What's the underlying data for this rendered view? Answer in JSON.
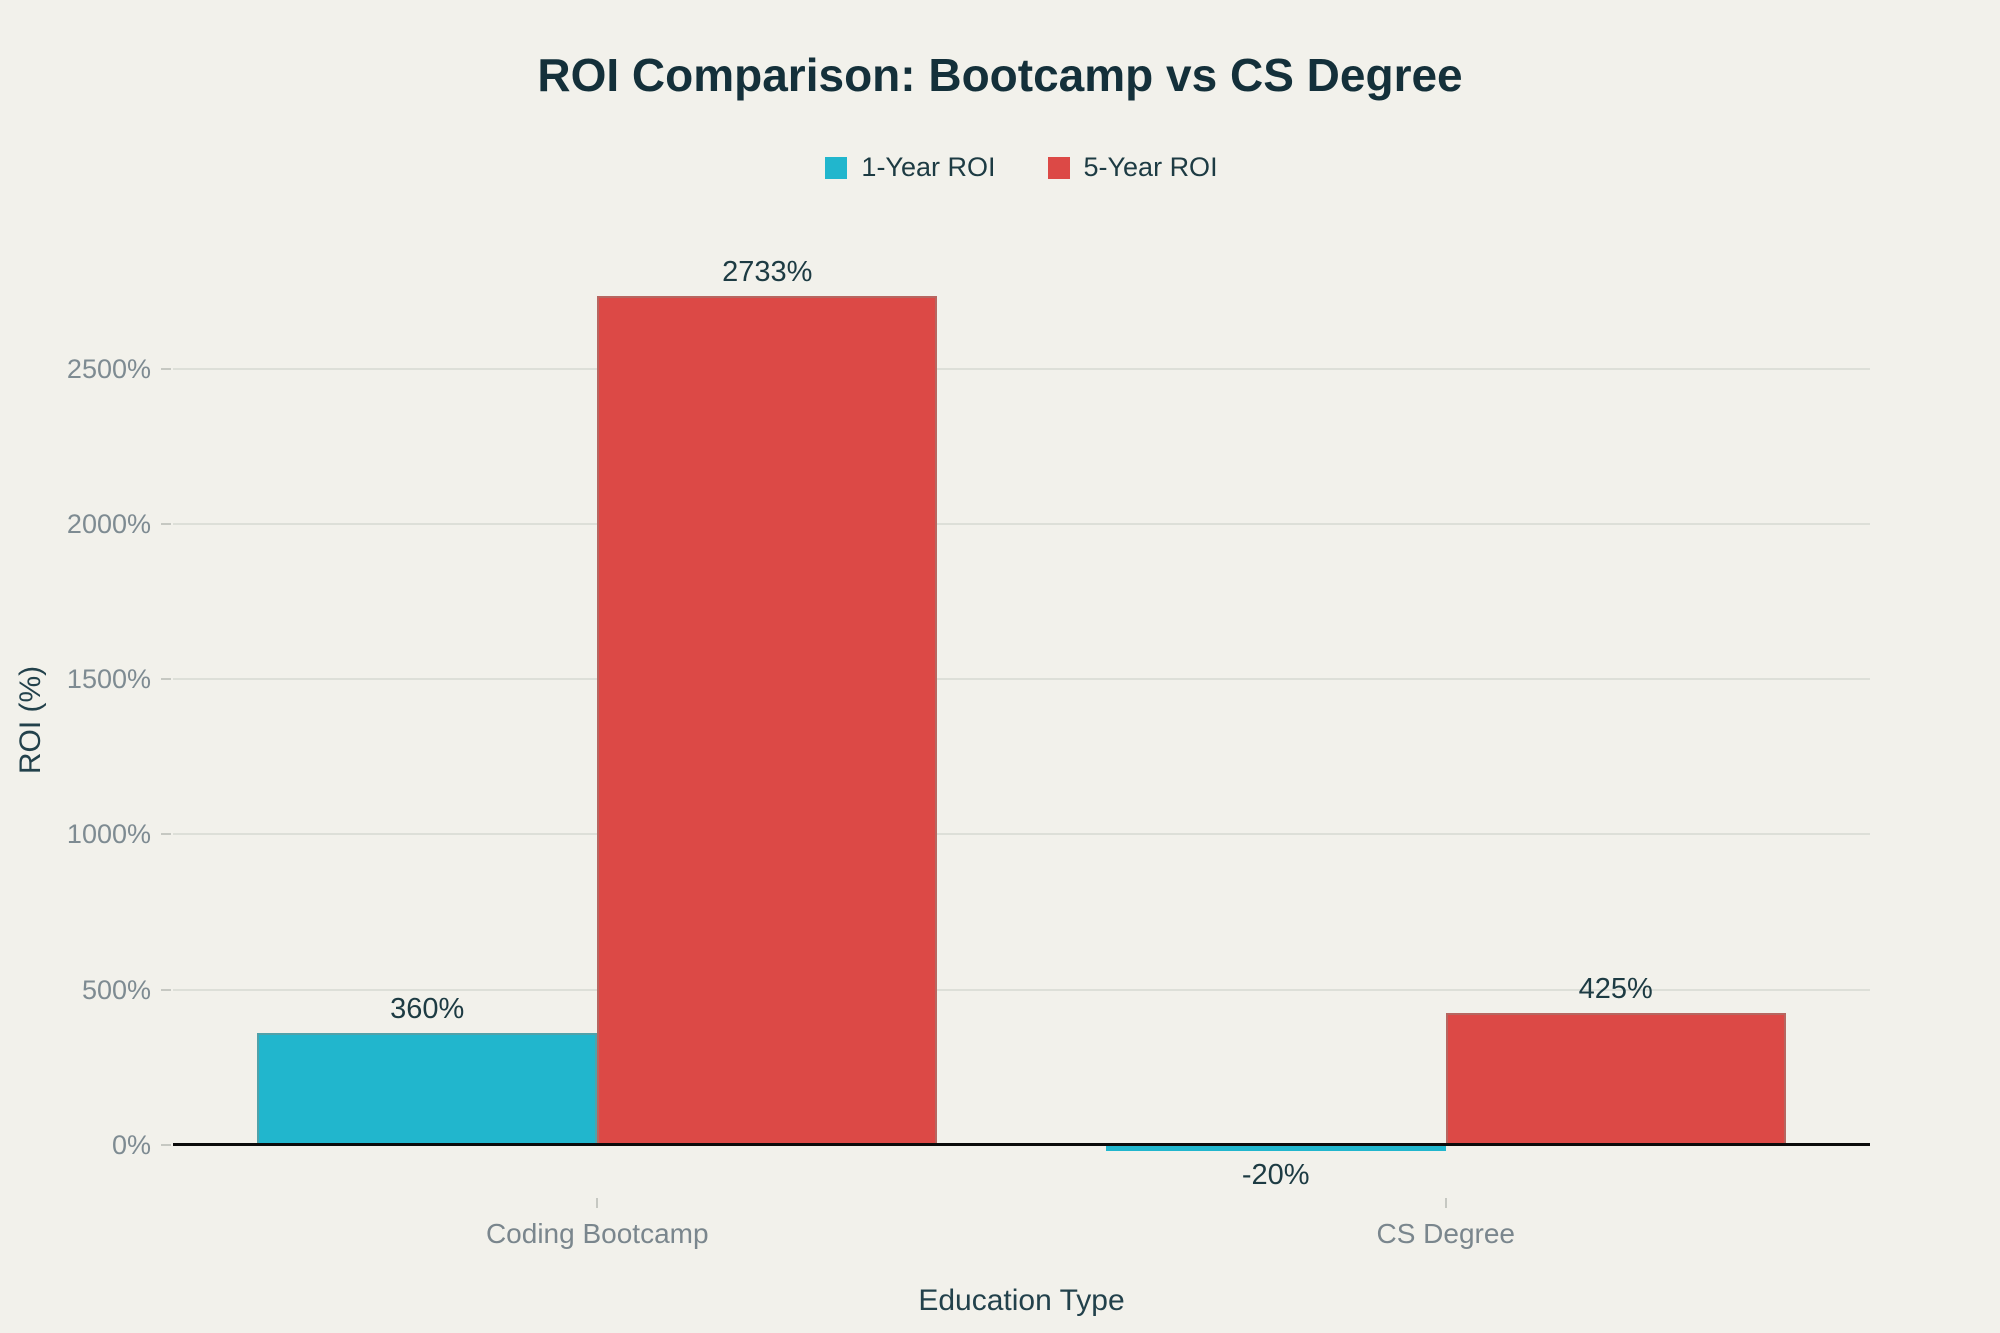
{
  "chart_data": {
    "type": "bar",
    "title": "ROI Comparison: Bootcamp vs CS Degree",
    "xlabel": "Education Type",
    "ylabel": "ROI (%)",
    "categories": [
      "Coding Bootcamp",
      "CS Degree"
    ],
    "series": [
      {
        "name": "1-Year ROI",
        "color": "#21b6cd",
        "values": [
          360,
          -20
        ],
        "value_labels": [
          "360%",
          "-20%"
        ]
      },
      {
        "name": "5-Year ROI",
        "color": "#dc4946",
        "values": [
          2733,
          425
        ],
        "value_labels": [
          "2733%",
          "425%"
        ]
      }
    ],
    "yticks": [
      0,
      500,
      1000,
      1500,
      2000,
      2500
    ],
    "ytick_labels": [
      "0%",
      "500%",
      "1000%",
      "1500%",
      "2000%",
      "2500%"
    ],
    "ylim": [
      -110,
      3080
    ],
    "grid": true,
    "legend_position": "top-center",
    "bar_mode": "grouped-adjacent"
  },
  "colors": {
    "background": "#f2f1eb",
    "title": "#14303a",
    "axis_title": "#22414b",
    "tick_label": "#7e8b92",
    "category_label": "#7a868d",
    "data_label": "#1d3b43",
    "legend_label": "#1d3b43",
    "gridline": "#dddfd8",
    "zero_axis": "#0b0b0b",
    "bar_edge": "#898980"
  }
}
